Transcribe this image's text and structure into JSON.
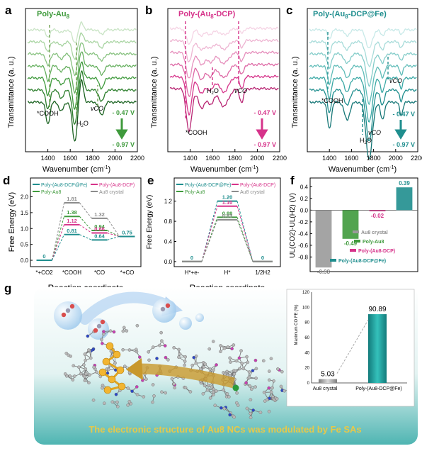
{
  "panels": {
    "a": {
      "letter": "a",
      "title": "Poly-Au",
      "title_sub": "8",
      "xlabel": "Wavenumber (cm",
      "xlabel_sup": "-1",
      "xlabel_end": ")",
      "ylabel": "Transmittance (a. u.)",
      "xticks": [
        "1400",
        "1600",
        "1800",
        "2000",
        "2200"
      ],
      "annot": [
        "*COOH",
        "H",
        "2",
        "O",
        "vCO"
      ],
      "range_top": "- 0.47 V",
      "range_bottom": "- 0.97 V",
      "color": "#3f9a3c"
    },
    "b": {
      "letter": "b",
      "title": "Poly-(Au",
      "title_sub": "8",
      "title_end": "-DCP)",
      "xlabel": "Wavenumber (cm",
      "xlabel_sup": "-1",
      "xlabel_end": ")",
      "ylabel": "Transmittance (a. u.)",
      "xticks": [
        "1400",
        "1600",
        "1800",
        "2000",
        "2200"
      ],
      "annot": [
        "*COOH",
        "H",
        "2",
        "O",
        "vCO"
      ],
      "range_top": "- 0.47 V",
      "range_bottom": "- 0.97 V",
      "color": "#d6338a"
    },
    "c": {
      "letter": "c",
      "title": "Poly-(Au",
      "title_sub": "8",
      "title_end": "-DCP@Fe)",
      "xlabel": "Wavenumber (cm",
      "xlabel_sup": "-1",
      "xlabel_end": ")",
      "ylabel": "Transmittance (a. u.)",
      "xticks": [
        "1400",
        "1600",
        "1800",
        "2000",
        "2200"
      ],
      "annot": [
        "*COOH",
        "H",
        "2",
        "O",
        "vCO",
        "vCO"
      ],
      "range_top": "- 0.47 V",
      "range_bottom": "- 0.97 V",
      "color": "#1f8e8e"
    },
    "d": {
      "letter": "d",
      "ylabel": "Free Energy (eV)",
      "xlabel": "Reaction coordinate",
      "legend": [
        "Poly-(Au8-DCP@Fe)",
        "Poly-(Au8-DCP)",
        "Poly-Au8",
        "Au8 crystal"
      ]
    },
    "e": {
      "letter": "e",
      "ylabel": "Free Energy (eV)",
      "xlabel": "Reaction coordinate",
      "legend": [
        "Poly-(Au8-DCP@Fe)",
        "Poly-(Au8-DCP)",
        "Poly-Au8",
        "Au8 crystal"
      ]
    },
    "f": {
      "letter": "f",
      "ylabel": "UL(CO2)-UL(H2) (V)",
      "legend": [
        "Au8 crystal",
        "Poly-Au8",
        "Poly-(Au8-DCP)",
        "Poly-(Au8-DCP@Fe)"
      ]
    },
    "g": {
      "letter": "g",
      "caption": "The electronic structure of Au8 NCs was modulated by  Fe SAs",
      "inset_ylabel": "Maximum CO FE (%)"
    }
  },
  "colors": {
    "green": "#3f9a3c",
    "pink": "#d6338a",
    "teal": "#1f8e8e",
    "gray": "#8c8c8c",
    "caption": "#e6c84a"
  },
  "chart_data": [
    {
      "panel": "d",
      "type": "line",
      "categories": [
        "*+CO2",
        "*COOH",
        "*CO",
        "*+CO"
      ],
      "ylim": [
        -0.2,
        2.1
      ],
      "yticks": [
        0.0,
        0.5,
        1.0,
        1.5,
        2.0
      ],
      "series": [
        {
          "name": "Au8 crystal",
          "color": "#8c8c8c",
          "values": [
            0,
            1.81,
            1.32,
            0.75
          ]
        },
        {
          "name": "Poly-Au8",
          "color": "#3f9a3c",
          "values": [
            0,
            1.38,
            0.94,
            0.75
          ]
        },
        {
          "name": "Poly-(Au8-DCP)",
          "color": "#d6338a",
          "values": [
            0,
            1.12,
            0.86,
            0.75
          ]
        },
        {
          "name": "Poly-(Au8-DCP@Fe)",
          "color": "#1f8e8e",
          "values": [
            0,
            0.81,
            0.64,
            0.75
          ]
        }
      ],
      "labels": [
        "0",
        "1.81",
        "1.38",
        "1.12",
        "0.81",
        "1.32",
        "0.94",
        "0.86",
        "0.64",
        "0.75"
      ]
    },
    {
      "panel": "e",
      "type": "line",
      "categories": [
        "H*+e-",
        "H*",
        "1/2H2"
      ],
      "ylim": [
        -0.1,
        1.35
      ],
      "yticks": [
        0.0,
        0.4,
        0.8,
        1.2
      ],
      "series": [
        {
          "name": "Poly-(Au8-DCP@Fe)",
          "color": "#1f8e8e",
          "values": [
            0,
            1.2,
            0
          ]
        },
        {
          "name": "Poly-(Au8-DCP)",
          "color": "#d6338a",
          "values": [
            0,
            1.1,
            0
          ]
        },
        {
          "name": "Poly-Au8",
          "color": "#3f9a3c",
          "values": [
            0,
            0.88,
            0
          ]
        },
        {
          "name": "Au8 crystal",
          "color": "#8c8c8c",
          "values": [
            0,
            0.83,
            0
          ]
        }
      ],
      "labels": [
        "0",
        "1.20",
        "1.10",
        "0.88",
        "0.83",
        "0"
      ]
    },
    {
      "panel": "f",
      "type": "bar",
      "categories": [
        "Au8 crystal",
        "Poly-Au8",
        "Poly-(Au8-DCP)",
        "Poly-(Au8-DCP@Fe)"
      ],
      "values": [
        -0.98,
        -0.49,
        -0.02,
        0.39
      ],
      "colors": [
        "#9a9a9a",
        "#3f9a3c",
        "#d6338a",
        "#1f8e8e"
      ],
      "ylim": [
        -1.05,
        0.55
      ],
      "yticks": [
        -0.8,
        -0.6,
        -0.4,
        -0.2,
        0.0,
        0.2,
        0.4
      ]
    },
    {
      "panel": "g-inset",
      "type": "bar",
      "categories": [
        "Au8 crystal",
        "Poly-(Au8-DCP@Fe)"
      ],
      "values": [
        5.03,
        90.89
      ],
      "colors": [
        "#9a9a9a",
        "#1f8e8e"
      ],
      "ylim": [
        0,
        120
      ],
      "yticks": [
        0,
        20,
        40,
        60,
        80,
        100,
        120
      ]
    }
  ]
}
